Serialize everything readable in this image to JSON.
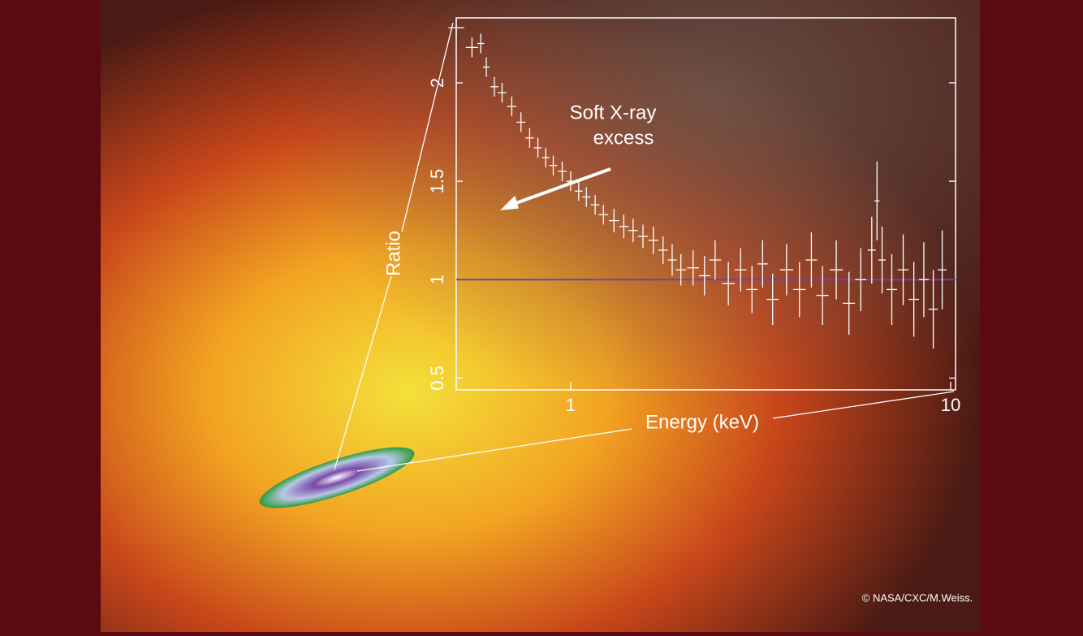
{
  "chart_data": {
    "type": "errorbar",
    "annotation": [
      "Soft X-ray",
      "excess"
    ],
    "xlabel": "Energy (keV)",
    "ylabel": "Ratio",
    "credit": "© NASA/CXC/M.Weiss.",
    "x_scale": "log",
    "xlim": [
      0.5,
      10.3
    ],
    "ylim": [
      0.44,
      2.33
    ],
    "xticks": [
      1,
      10
    ],
    "yticks": [
      0.5,
      1,
      1.5,
      2
    ],
    "reference_line": 1,
    "reference_color": "#7a3fa0",
    "series": [
      {
        "color": "#ffffff",
        "x": [
          0.5,
          0.55,
          0.58,
          0.6,
          0.63,
          0.66,
          0.7,
          0.74,
          0.78,
          0.82,
          0.86,
          0.9,
          0.95,
          1.0,
          1.05,
          1.1,
          1.16,
          1.22,
          1.3,
          1.38,
          1.46,
          1.55,
          1.65,
          1.75,
          1.85,
          1.95,
          2.1,
          2.25,
          2.4,
          2.6,
          2.8,
          3.0,
          3.2,
          3.4,
          3.7,
          4.0,
          4.3,
          4.6,
          5.0,
          5.4,
          5.8,
          6.2,
          6.4,
          6.6,
          7.0,
          7.5,
          8.0,
          8.5,
          9.0,
          9.5
        ],
        "values": [
          2.28,
          2.18,
          2.2,
          2.08,
          1.98,
          1.95,
          1.88,
          1.8,
          1.72,
          1.67,
          1.62,
          1.58,
          1.55,
          1.5,
          1.45,
          1.42,
          1.38,
          1.33,
          1.3,
          1.27,
          1.25,
          1.22,
          1.2,
          1.15,
          1.1,
          1.05,
          1.06,
          1.02,
          1.1,
          0.98,
          1.05,
          0.95,
          1.08,
          0.9,
          1.05,
          0.95,
          1.1,
          0.92,
          1.05,
          0.88,
          1.0,
          1.15,
          1.4,
          1.1,
          0.95,
          1.05,
          0.9,
          1.0,
          0.85,
          1.05
        ],
        "errors": [
          0.05,
          0.05,
          0.05,
          0.05,
          0.05,
          0.05,
          0.05,
          0.05,
          0.05,
          0.05,
          0.05,
          0.05,
          0.05,
          0.05,
          0.05,
          0.05,
          0.05,
          0.05,
          0.06,
          0.06,
          0.06,
          0.06,
          0.07,
          0.07,
          0.08,
          0.08,
          0.09,
          0.1,
          0.1,
          0.11,
          0.11,
          0.12,
          0.12,
          0.13,
          0.13,
          0.14,
          0.14,
          0.15,
          0.15,
          0.16,
          0.16,
          0.17,
          0.2,
          0.17,
          0.18,
          0.18,
          0.19,
          0.19,
          0.2,
          0.2
        ]
      }
    ]
  }
}
